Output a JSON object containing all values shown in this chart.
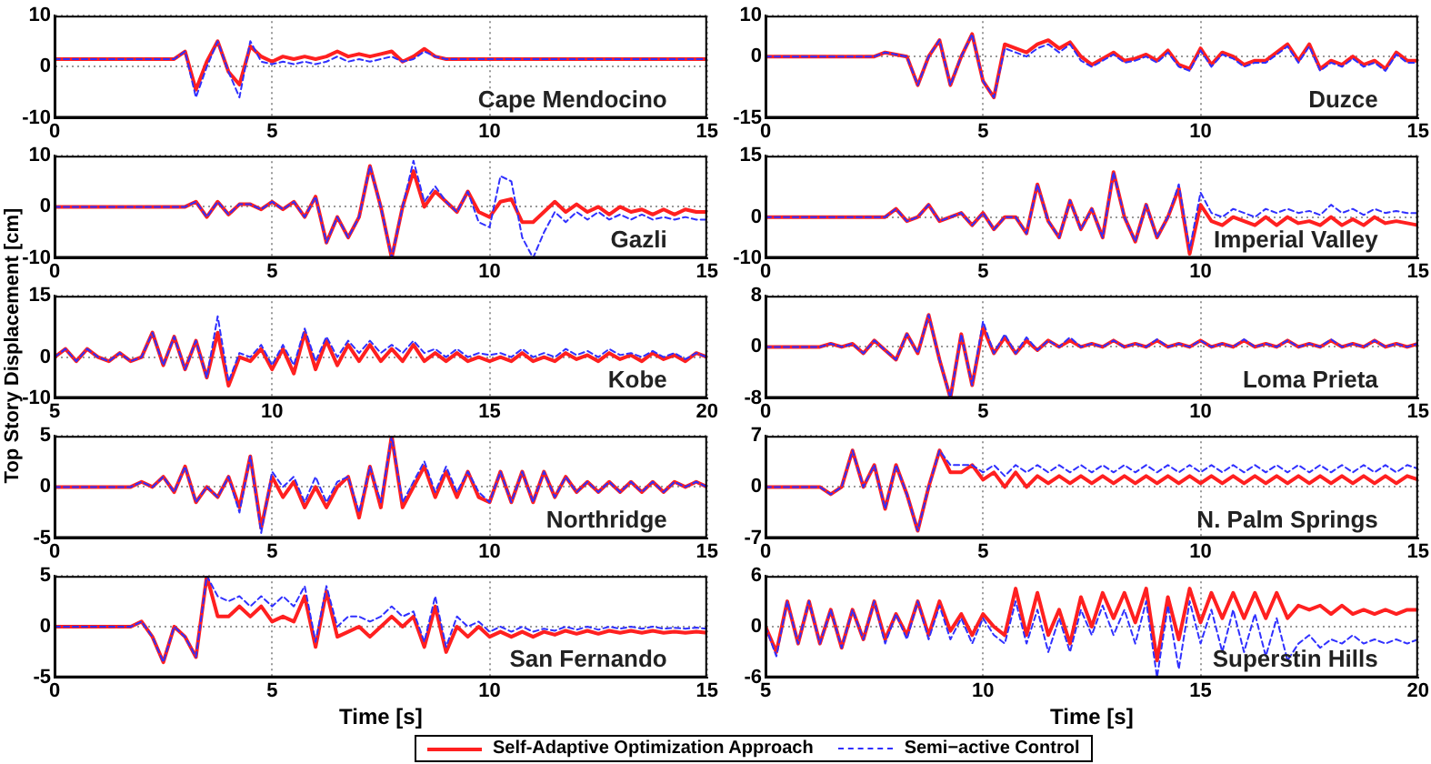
{
  "chart_data": [
    {
      "type": "line",
      "x": [
        0,
        0.25,
        0.5,
        0.75,
        1,
        1.25,
        1.5,
        1.75,
        2,
        2.25,
        2.5,
        2.75,
        3,
        3.25,
        3.5,
        3.75,
        4,
        4.25,
        4.5,
        4.75,
        5,
        5.25,
        5.5,
        5.75,
        6,
        6.25,
        6.5,
        6.75,
        7,
        7.25,
        7.5,
        7.75,
        8,
        8.25,
        8.5,
        8.75,
        9,
        9.25,
        9.5,
        9.75,
        10,
        10.25,
        10.5,
        10.75,
        11,
        11.25,
        11.5,
        11.75,
        12,
        12.25,
        12.5,
        12.75,
        13,
        13.25,
        13.5,
        13.75,
        14,
        14.25,
        14.5,
        14.75,
        15
      ],
      "xlim": [
        0,
        15
      ],
      "xticks": [
        0,
        5,
        10,
        15
      ],
      "ylim": [
        -10,
        10
      ],
      "yticks": [
        -10,
        0,
        10
      ],
      "grid": true,
      "legend": "bottom",
      "annotations": [
        "Cape Mendocino"
      ],
      "series": [
        {
          "name": "Self-Adaptive Optimization Approach",
          "color": "#ff2020",
          "line_style": "solid",
          "values": [
            1.5,
            1.5,
            1.5,
            1.5,
            1.5,
            1.5,
            1.5,
            1.5,
            1.5,
            1.5,
            1.5,
            1.5,
            3,
            -4.5,
            1,
            5,
            -1,
            -3.5,
            4,
            2,
            1,
            2,
            1.5,
            2,
            1.5,
            2,
            3,
            2,
            2.5,
            2,
            2.5,
            3,
            1,
            2,
            3.5,
            2,
            1.5,
            1.5,
            1.5,
            1.5,
            1.5,
            1.5,
            1.5,
            1.5,
            1.5,
            1.5,
            1.5,
            1.5,
            1.5,
            1.5,
            1.5,
            1.5,
            1.5,
            1.5,
            1.5,
            1.5,
            1.5,
            1.5,
            1.5,
            1.5,
            1.5
          ]
        },
        {
          "name": "Semi−active Control",
          "color": "#3030ff",
          "line_style": "dashed",
          "values": [
            1.5,
            1.5,
            1.5,
            1.5,
            1.5,
            1.5,
            1.5,
            1.5,
            1.5,
            1.5,
            1.5,
            1.5,
            3,
            -6,
            0,
            5,
            -1,
            -6,
            5,
            1,
            0.5,
            1,
            0.5,
            1,
            0.5,
            1,
            2,
            1,
            1.5,
            1,
            1.5,
            2,
            1,
            1.5,
            3,
            2,
            1.5,
            1.5,
            1.5,
            1.5,
            1.5,
            1.5,
            1.5,
            1.5,
            1.5,
            1.5,
            1.5,
            1.5,
            1.5,
            1.5,
            1.5,
            1.5,
            1.5,
            1.5,
            1.5,
            1.5,
            1.5,
            1.5,
            1.5,
            1.5,
            1.5
          ]
        }
      ]
    },
    {
      "type": "line",
      "x": [
        0,
        0.25,
        0.5,
        0.75,
        1,
        1.25,
        1.5,
        1.75,
        2,
        2.25,
        2.5,
        2.75,
        3,
        3.25,
        3.5,
        3.75,
        4,
        4.25,
        4.5,
        4.75,
        5,
        5.25,
        5.5,
        5.75,
        6,
        6.25,
        6.5,
        6.75,
        7,
        7.25,
        7.5,
        7.75,
        8,
        8.25,
        8.5,
        8.75,
        9,
        9.25,
        9.5,
        9.75,
        10,
        10.25,
        10.5,
        10.75,
        11,
        11.25,
        11.5,
        11.75,
        12,
        12.25,
        12.5,
        12.75,
        13,
        13.25,
        13.5,
        13.75,
        14,
        14.25,
        14.5,
        14.75,
        15
      ],
      "xlim": [
        0,
        15
      ],
      "xticks": [
        0,
        5,
        10,
        15
      ],
      "ylim": [
        -15,
        10
      ],
      "yticks": [
        -15,
        0,
        10
      ],
      "grid": true,
      "legend": "bottom",
      "annotations": [
        "Duzce"
      ],
      "series": [
        {
          "name": "Self-Adaptive Optimization Approach",
          "color": "#ff2020",
          "line_style": "solid",
          "values": [
            0,
            0,
            0,
            0,
            0,
            0,
            0,
            0,
            0,
            0,
            0,
            1,
            0.5,
            0,
            -7,
            0,
            4,
            -7,
            0,
            5.5,
            -6,
            -10,
            3,
            2,
            1,
            3,
            4,
            2,
            3.5,
            0,
            -2,
            -0.5,
            1,
            -1,
            -0.5,
            0.5,
            -1,
            1.5,
            -2,
            -3,
            2,
            -2,
            1,
            0,
            -2,
            -1,
            -1,
            1,
            3,
            -1,
            3,
            -3,
            -1,
            -2,
            0,
            -2,
            -1,
            -3,
            1,
            -1,
            -1
          ]
        },
        {
          "name": "Semi−active Control",
          "color": "#3030ff",
          "line_style": "dashed",
          "values": [
            0,
            0,
            0,
            0,
            0,
            0,
            0,
            0,
            0,
            0,
            0,
            1,
            0.5,
            0,
            -7,
            0,
            4,
            -7,
            0,
            5.5,
            -6,
            -10,
            2,
            1,
            0,
            2,
            3,
            1,
            3,
            -1,
            -2.5,
            -1,
            0.5,
            -1.5,
            -1,
            0,
            -1.5,
            1,
            -2.5,
            -3.5,
            1.5,
            -2.5,
            0.5,
            -0.5,
            -2.5,
            -1.5,
            -1.5,
            0.5,
            2.5,
            -1.5,
            2.5,
            -3.5,
            -1.5,
            -2.5,
            -0.5,
            -2.5,
            -1.5,
            -3.5,
            0.5,
            -1.5,
            -1.5
          ]
        }
      ]
    },
    {
      "type": "line",
      "x": [
        0,
        0.25,
        0.5,
        0.75,
        1,
        1.25,
        1.5,
        1.75,
        2,
        2.25,
        2.5,
        2.75,
        3,
        3.25,
        3.5,
        3.75,
        4,
        4.25,
        4.5,
        4.75,
        5,
        5.25,
        5.5,
        5.75,
        6,
        6.25,
        6.5,
        6.75,
        7,
        7.25,
        7.5,
        7.75,
        8,
        8.25,
        8.5,
        8.75,
        9,
        9.25,
        9.5,
        9.75,
        10,
        10.25,
        10.5,
        10.75,
        11,
        11.25,
        11.5,
        11.75,
        12,
        12.25,
        12.5,
        12.75,
        13,
        13.25,
        13.5,
        13.75,
        14,
        14.25,
        14.5,
        14.75,
        15
      ],
      "xlim": [
        0,
        15
      ],
      "xticks": [
        0,
        5,
        10,
        15
      ],
      "ylim": [
        -10,
        10
      ],
      "yticks": [
        -10,
        0,
        10
      ],
      "grid": true,
      "legend": "bottom",
      "annotations": [
        "Gazli"
      ],
      "series": [
        {
          "name": "Self-Adaptive Optimization Approach",
          "color": "#ff2020",
          "line_style": "solid",
          "values": [
            0,
            0,
            0,
            0,
            0,
            0,
            0,
            0,
            0,
            0,
            0,
            0,
            0,
            1,
            -2,
            1,
            -1.5,
            0.5,
            0.5,
            -0.5,
            1,
            -0.5,
            1,
            -2,
            2,
            -7,
            -2,
            -6,
            -2,
            8,
            0,
            -10,
            0,
            7,
            0,
            3,
            1,
            -1,
            3,
            -1,
            -2,
            1,
            1.5,
            -3,
            -3,
            -1,
            1,
            -1,
            0.5,
            -1,
            0,
            -1.5,
            0,
            -1,
            -0.5,
            -1.5,
            -0.5,
            -1.5,
            -0.5,
            -1,
            -1
          ]
        },
        {
          "name": "Semi−active Control",
          "color": "#3030ff",
          "line_style": "dashed",
          "values": [
            0,
            0,
            0,
            0,
            0,
            0,
            0,
            0,
            0,
            0,
            0,
            0,
            0,
            1,
            -2,
            1,
            -1.5,
            0.5,
            0.5,
            -0.5,
            1,
            -0.5,
            1,
            -2,
            2,
            -7,
            -2,
            -6,
            -2,
            8,
            0,
            -10,
            0,
            9,
            1,
            4,
            1,
            -1,
            3,
            -3,
            -4,
            6,
            5,
            -6,
            -10,
            -5,
            -1,
            -3,
            -1,
            -2.5,
            -1,
            -2.5,
            -1.5,
            -2.5,
            -1.5,
            -2.5,
            -2,
            -2.5,
            -2,
            -2.5,
            -2.5
          ]
        }
      ]
    },
    {
      "type": "line",
      "x": [
        0,
        0.25,
        0.5,
        0.75,
        1,
        1.25,
        1.5,
        1.75,
        2,
        2.25,
        2.5,
        2.75,
        3,
        3.25,
        3.5,
        3.75,
        4,
        4.25,
        4.5,
        4.75,
        5,
        5.25,
        5.5,
        5.75,
        6,
        6.25,
        6.5,
        6.75,
        7,
        7.25,
        7.5,
        7.75,
        8,
        8.25,
        8.5,
        8.75,
        9,
        9.25,
        9.5,
        9.75,
        10,
        10.25,
        10.5,
        10.75,
        11,
        11.25,
        11.5,
        11.75,
        12,
        12.25,
        12.5,
        12.75,
        13,
        13.25,
        13.5,
        13.75,
        14,
        14.25,
        14.5,
        14.75,
        15
      ],
      "xlim": [
        0,
        15
      ],
      "xticks": [
        0,
        5,
        10,
        15
      ],
      "ylim": [
        -10,
        15
      ],
      "yticks": [
        -10,
        0,
        15
      ],
      "grid": true,
      "legend": "bottom",
      "annotations": [
        "Imperial Valley"
      ],
      "series": [
        {
          "name": "Self-Adaptive Optimization Approach",
          "color": "#ff2020",
          "line_style": "solid",
          "values": [
            0,
            0,
            0,
            0,
            0,
            0,
            0,
            0,
            0,
            0,
            0,
            0,
            2,
            -1,
            0,
            3,
            -1,
            0,
            1,
            -2,
            1,
            -3,
            0,
            0,
            -4,
            8,
            -1,
            -5,
            4,
            -3,
            2,
            -5,
            11,
            0,
            -6,
            3,
            -5,
            0,
            7,
            -9,
            3,
            -1,
            -2,
            0,
            -1,
            -2,
            0,
            -2,
            0,
            -1.5,
            -1,
            -2,
            0,
            -2,
            -0.5,
            -2,
            0,
            -1.5,
            -1,
            -1.5,
            -2
          ]
        },
        {
          "name": "Semi−active Control",
          "color": "#3030ff",
          "line_style": "dashed",
          "values": [
            0,
            0,
            0,
            0,
            0,
            0,
            0,
            0,
            0,
            0,
            0,
            0,
            2,
            -1,
            0,
            3,
            -1,
            0,
            1,
            -2,
            1,
            -3,
            0,
            0,
            -4,
            8,
            -1,
            -5,
            4,
            -3,
            2,
            -5,
            11,
            0,
            -6,
            3,
            -5,
            0,
            8,
            -8,
            6,
            1,
            0,
            2,
            1,
            0,
            2,
            1,
            2,
            1,
            1.5,
            0.5,
            3,
            1,
            2,
            0.5,
            2,
            1,
            1.5,
            1,
            1
          ]
        }
      ]
    },
    {
      "type": "line",
      "x": [
        5,
        5.25,
        5.5,
        5.75,
        6,
        6.25,
        6.5,
        6.75,
        7,
        7.25,
        7.5,
        7.75,
        8,
        8.25,
        8.5,
        8.75,
        9,
        9.25,
        9.5,
        9.75,
        10,
        10.25,
        10.5,
        10.75,
        11,
        11.25,
        11.5,
        11.75,
        12,
        12.25,
        12.5,
        12.75,
        13,
        13.25,
        13.5,
        13.75,
        14,
        14.25,
        14.5,
        14.75,
        15,
        15.25,
        15.5,
        15.75,
        16,
        16.25,
        16.5,
        16.75,
        17,
        17.25,
        17.5,
        17.75,
        18,
        18.25,
        18.5,
        18.75,
        19,
        19.25,
        19.5,
        19.75,
        20
      ],
      "xlim": [
        5,
        20
      ],
      "xticks": [
        5,
        10,
        15,
        20
      ],
      "ylim": [
        -10,
        15
      ],
      "yticks": [
        -10,
        0,
        15
      ],
      "grid": true,
      "legend": "bottom",
      "annotations": [
        "Kobe"
      ],
      "ylabel": "Top Story Displacement [cm]",
      "series": [
        {
          "name": "Self-Adaptive Optimization Approach",
          "color": "#ff2020",
          "line_style": "solid",
          "values": [
            0,
            2,
            -1,
            2,
            0,
            -1,
            1,
            -1,
            0,
            6,
            -2,
            5,
            -3,
            4,
            -5,
            6,
            -7,
            0,
            -1,
            2,
            -3,
            2,
            -4,
            6,
            -3,
            4,
            -2,
            3,
            -1,
            3,
            -1,
            2,
            -1,
            3,
            -1,
            1,
            -1,
            1,
            -1,
            0,
            -1,
            0,
            -1,
            1,
            -1,
            0,
            -1,
            1,
            -0.5,
            0.5,
            -1,
            1,
            -0.5,
            0.5,
            -1,
            1,
            -0.5,
            0.5,
            -1,
            1,
            0
          ]
        },
        {
          "name": "Semi−active Control",
          "color": "#3030ff",
          "line_style": "dashed",
          "values": [
            0,
            2,
            -1,
            2,
            0,
            -1,
            1,
            -1,
            0,
            6,
            -2,
            5,
            -3,
            4,
            -5,
            10,
            -6,
            1,
            0,
            3,
            -2,
            3,
            -2,
            7,
            -1,
            5,
            0,
            4,
            1,
            4,
            1,
            3,
            1,
            4,
            1,
            2,
            0,
            2,
            0,
            1,
            0.5,
            1,
            0,
            2,
            0,
            1,
            0,
            2,
            0.5,
            1.5,
            0,
            2,
            0.5,
            1,
            0,
            1.5,
            0,
            1,
            -0.5,
            1,
            0
          ]
        }
      ]
    },
    {
      "type": "line",
      "x": [
        0,
        0.25,
        0.5,
        0.75,
        1,
        1.25,
        1.5,
        1.75,
        2,
        2.25,
        2.5,
        2.75,
        3,
        3.25,
        3.5,
        3.75,
        4,
        4.25,
        4.5,
        4.75,
        5,
        5.25,
        5.5,
        5.75,
        6,
        6.25,
        6.5,
        6.75,
        7,
        7.25,
        7.5,
        7.75,
        8,
        8.25,
        8.5,
        8.75,
        9,
        9.25,
        9.5,
        9.75,
        10,
        10.25,
        10.5,
        10.75,
        11,
        11.25,
        11.5,
        11.75,
        12,
        12.25,
        12.5,
        12.75,
        13,
        13.25,
        13.5,
        13.75,
        14,
        14.25,
        14.5,
        14.75,
        15
      ],
      "xlim": [
        0,
        15
      ],
      "xticks": [
        0,
        5,
        10,
        15
      ],
      "ylim": [
        -8,
        8
      ],
      "yticks": [
        -8,
        0,
        8
      ],
      "grid": true,
      "legend": "bottom",
      "annotations": [
        "Loma Prieta"
      ],
      "series": [
        {
          "name": "Self-Adaptive Optimization Approach",
          "color": "#ff2020",
          "line_style": "solid",
          "values": [
            0,
            0,
            0,
            0,
            0,
            0,
            0.5,
            0,
            0.5,
            -1,
            1,
            -0.5,
            -2,
            2,
            -1,
            5,
            -2,
            -8,
            2,
            -6,
            3,
            -1,
            1.5,
            -1,
            1,
            -0.5,
            1,
            0,
            1,
            0,
            0.5,
            0,
            1,
            0,
            0.5,
            0,
            1,
            0,
            0.5,
            0,
            1,
            0,
            0.5,
            0,
            1,
            0,
            0.5,
            0,
            1,
            0,
            0.5,
            0,
            1,
            0,
            0.5,
            0,
            1,
            0,
            0.5,
            0,
            0.5
          ]
        },
        {
          "name": "Semi−active Control",
          "color": "#3030ff",
          "line_style": "dashed",
          "values": [
            0,
            0,
            0,
            0,
            0,
            0,
            0.5,
            0,
            0.5,
            -1,
            1,
            -0.5,
            -2,
            2,
            -1,
            5,
            -2,
            -8,
            2,
            -6,
            4,
            -1,
            2,
            -1,
            1.5,
            -0.5,
            1,
            0,
            1.5,
            0,
            0.5,
            0,
            1,
            0,
            0.5,
            0,
            1.2,
            0,
            0.5,
            0,
            1,
            0,
            0.5,
            0,
            1.2,
            0,
            0.5,
            0,
            1,
            0,
            0.5,
            0,
            1.2,
            0,
            0.5,
            0,
            1,
            0,
            0.5,
            0,
            0.5
          ]
        }
      ]
    },
    {
      "type": "line",
      "x": [
        0,
        0.25,
        0.5,
        0.75,
        1,
        1.25,
        1.5,
        1.75,
        2,
        2.25,
        2.5,
        2.75,
        3,
        3.25,
        3.5,
        3.75,
        4,
        4.25,
        4.5,
        4.75,
        5,
        5.25,
        5.5,
        5.75,
        6,
        6.25,
        6.5,
        6.75,
        7,
        7.25,
        7.5,
        7.75,
        8,
        8.25,
        8.5,
        8.75,
        9,
        9.25,
        9.5,
        9.75,
        10,
        10.25,
        10.5,
        10.75,
        11,
        11.25,
        11.5,
        11.75,
        12,
        12.25,
        12.5,
        12.75,
        13,
        13.25,
        13.5,
        13.75,
        14,
        14.25,
        14.5,
        14.75,
        15
      ],
      "xlim": [
        0,
        15
      ],
      "xticks": [
        0,
        5,
        10,
        15
      ],
      "ylim": [
        -5,
        5
      ],
      "yticks": [
        -5,
        0,
        5
      ],
      "grid": true,
      "legend": "bottom",
      "annotations": [
        "Northridge"
      ],
      "series": [
        {
          "name": "Self-Adaptive Optimization Approach",
          "color": "#ff2020",
          "line_style": "solid",
          "values": [
            0,
            0,
            0,
            0,
            0,
            0,
            0,
            0,
            0.5,
            0,
            1,
            -0.5,
            2,
            -1.5,
            0,
            -1,
            1,
            -2,
            3,
            -4,
            1,
            -1,
            0.5,
            -2,
            0,
            -2,
            0,
            1,
            -3,
            2,
            -2,
            5,
            -2,
            0,
            2,
            -1,
            1.5,
            -1,
            1.5,
            -1,
            -1.5,
            1.5,
            -1.5,
            1.5,
            -1.5,
            1.5,
            -1,
            1,
            -0.5,
            0.5,
            -0.5,
            0.5,
            -0.5,
            0.5,
            -0.5,
            0.5,
            -0.5,
            0.5,
            0,
            0.5,
            0
          ]
        },
        {
          "name": "Semi−active Control",
          "color": "#3030ff",
          "line_style": "dashed",
          "values": [
            0,
            0,
            0,
            0,
            0,
            0,
            0,
            0,
            0.5,
            0,
            1,
            -0.5,
            2,
            -1.5,
            0,
            -1,
            1,
            -2.5,
            3,
            -4.5,
            1.5,
            0,
            1,
            -1.5,
            1,
            -1.5,
            0.5,
            1,
            -2.5,
            2,
            -1.5,
            5,
            -1.5,
            0.5,
            2.5,
            -0.5,
            2,
            -0.5,
            1.5,
            -0.5,
            -1.5,
            1.5,
            -1.5,
            1.5,
            -1.5,
            1.5,
            -1,
            1,
            -0.5,
            0.5,
            -0.5,
            0.5,
            -0.5,
            0.5,
            -0.5,
            0.5,
            -0.5,
            0.5,
            0,
            0.5,
            0
          ]
        }
      ]
    },
    {
      "type": "line",
      "x": [
        0,
        0.25,
        0.5,
        0.75,
        1,
        1.25,
        1.5,
        1.75,
        2,
        2.25,
        2.5,
        2.75,
        3,
        3.25,
        3.5,
        3.75,
        4,
        4.25,
        4.5,
        4.75,
        5,
        5.25,
        5.5,
        5.75,
        6,
        6.25,
        6.5,
        6.75,
        7,
        7.25,
        7.5,
        7.75,
        8,
        8.25,
        8.5,
        8.75,
        9,
        9.25,
        9.5,
        9.75,
        10,
        10.25,
        10.5,
        10.75,
        11,
        11.25,
        11.5,
        11.75,
        12,
        12.25,
        12.5,
        12.75,
        13,
        13.25,
        13.5,
        13.75,
        14,
        14.25,
        14.5,
        14.75,
        15
      ],
      "xlim": [
        0,
        15
      ],
      "xticks": [
        0,
        5,
        10,
        15
      ],
      "ylim": [
        -7,
        7
      ],
      "yticks": [
        -7,
        0,
        7
      ],
      "grid": true,
      "legend": "bottom",
      "annotations": [
        "N. Palm Springs"
      ],
      "series": [
        {
          "name": "Self-Adaptive Optimization Approach",
          "color": "#ff2020",
          "line_style": "solid",
          "values": [
            0,
            0,
            0,
            0,
            0,
            0,
            -1,
            0,
            5,
            0,
            3,
            -3,
            3,
            -1,
            -6,
            0,
            5,
            2,
            2,
            3,
            1,
            2,
            0,
            2,
            0,
            1.5,
            0.5,
            1.5,
            0.5,
            1.5,
            0.5,
            1.5,
            0.5,
            1.5,
            0.5,
            1.5,
            0.5,
            1.5,
            0.5,
            1.5,
            0.5,
            1.5,
            0.5,
            1.5,
            0.5,
            1.5,
            0.5,
            1.5,
            0.5,
            1.5,
            0.5,
            1.5,
            0.5,
            1.5,
            0.5,
            1.5,
            0.5,
            1.5,
            0.5,
            1.5,
            1
          ]
        },
        {
          "name": "Semi−active Control",
          "color": "#3030ff",
          "line_style": "dashed",
          "values": [
            0,
            0,
            0,
            0,
            0,
            0,
            -1,
            0,
            5,
            0,
            3,
            -3,
            3,
            -1,
            -6,
            0,
            5,
            3,
            3,
            3,
            2,
            3,
            1.5,
            3,
            2,
            3,
            2,
            3,
            2,
            3,
            2,
            3,
            2,
            3,
            2,
            3,
            2,
            3,
            2,
            3,
            2,
            3,
            2,
            3,
            2,
            3,
            2,
            3,
            2,
            3,
            2,
            3,
            2,
            3,
            2,
            3,
            2,
            3,
            2,
            3,
            2.5
          ]
        }
      ]
    },
    {
      "type": "line",
      "x": [
        0,
        0.25,
        0.5,
        0.75,
        1,
        1.25,
        1.5,
        1.75,
        2,
        2.25,
        2.5,
        2.75,
        3,
        3.25,
        3.5,
        3.75,
        4,
        4.25,
        4.5,
        4.75,
        5,
        5.25,
        5.5,
        5.75,
        6,
        6.25,
        6.5,
        6.75,
        7,
        7.25,
        7.5,
        7.75,
        8,
        8.25,
        8.5,
        8.75,
        9,
        9.25,
        9.5,
        9.75,
        10,
        10.25,
        10.5,
        10.75,
        11,
        11.25,
        11.5,
        11.75,
        12,
        12.25,
        12.5,
        12.75,
        13,
        13.25,
        13.5,
        13.75,
        14,
        14.25,
        14.5,
        14.75,
        15
      ],
      "xlim": [
        0,
        15
      ],
      "xticks": [
        0,
        5,
        10,
        15
      ],
      "ylim": [
        -5,
        5
      ],
      "yticks": [
        -5,
        0,
        5
      ],
      "grid": true,
      "legend": "bottom",
      "annotations": [
        "San Fernando"
      ],
      "xlabel": "Time [s]",
      "series": [
        {
          "name": "Self-Adaptive Optimization Approach",
          "color": "#ff2020",
          "line_style": "solid",
          "values": [
            0,
            0,
            0,
            0,
            0,
            0,
            0,
            0,
            0.5,
            -1,
            -3.5,
            0,
            -1,
            -3,
            5,
            1,
            1,
            2,
            1,
            2,
            0.5,
            1,
            0.5,
            3,
            -2,
            3.5,
            -1,
            -0.5,
            0,
            -1,
            0,
            1,
            0,
            1,
            -2,
            2,
            -2.5,
            0,
            -1,
            0,
            -1,
            -0.5,
            -1,
            -0.5,
            -1,
            -0.5,
            -0.8,
            -0.4,
            -0.7,
            -0.4,
            -0.7,
            -0.4,
            -0.6,
            -0.4,
            -0.6,
            -0.4,
            -0.6,
            -0.5,
            -0.6,
            -0.5,
            -0.6
          ]
        },
        {
          "name": "Semi−active Control",
          "color": "#3030ff",
          "line_style": "dashed",
          "values": [
            0,
            0,
            0,
            0,
            0,
            0,
            0,
            0,
            0.5,
            -1,
            -3.5,
            0,
            -1,
            -3,
            5,
            3,
            2.5,
            3,
            2,
            3,
            2,
            3,
            2,
            4,
            -1.5,
            4,
            0,
            1,
            1,
            0.5,
            1,
            2,
            1,
            1.5,
            -1.5,
            3,
            -2,
            1,
            0,
            0.5,
            -0.5,
            0,
            -0.5,
            0,
            -0.5,
            -0.2,
            -0.4,
            0,
            -0.3,
            0,
            -0.3,
            0,
            -0.2,
            0,
            -0.2,
            0,
            -0.2,
            -0.1,
            -0.2,
            -0.1,
            -0.2
          ]
        }
      ]
    },
    {
      "type": "line",
      "x": [
        5,
        5.25,
        5.5,
        5.75,
        6,
        6.25,
        6.5,
        6.75,
        7,
        7.25,
        7.5,
        7.75,
        8,
        8.25,
        8.5,
        8.75,
        9,
        9.25,
        9.5,
        9.75,
        10,
        10.25,
        10.5,
        10.75,
        11,
        11.25,
        11.5,
        11.75,
        12,
        12.25,
        12.5,
        12.75,
        13,
        13.25,
        13.5,
        13.75,
        14,
        14.25,
        14.5,
        14.75,
        15,
        15.25,
        15.5,
        15.75,
        16,
        16.25,
        16.5,
        16.75,
        17,
        17.25,
        17.5,
        17.75,
        18,
        18.25,
        18.5,
        18.75,
        19,
        19.25,
        19.5,
        19.75,
        20
      ],
      "xlim": [
        5,
        20
      ],
      "xticks": [
        5,
        10,
        15,
        20
      ],
      "ylim": [
        -6,
        6
      ],
      "yticks": [
        -6,
        0,
        6
      ],
      "grid": true,
      "legend": "bottom",
      "annotations": [
        "Superstin Hills"
      ],
      "xlabel": "Time [s]",
      "series": [
        {
          "name": "Self-Adaptive Optimization Approach",
          "color": "#ff2020",
          "line_style": "solid",
          "values": [
            0,
            -3,
            3,
            -2,
            3,
            -2,
            2,
            -2.5,
            2,
            -1.5,
            3,
            -1.5,
            1.5,
            -1,
            3,
            -1,
            3,
            -0.5,
            1.5,
            -1,
            1.5,
            0,
            -1,
            4.5,
            -1,
            4,
            -1,
            2,
            -2,
            3.5,
            0,
            4,
            1,
            4,
            0.5,
            4.5,
            -4,
            3.5,
            -1.5,
            4.5,
            0.5,
            4,
            1,
            4,
            1,
            4,
            1,
            4,
            1,
            2.5,
            2,
            2.5,
            1.5,
            2.5,
            1.5,
            2,
            1.5,
            2,
            1.5,
            2,
            2
          ]
        },
        {
          "name": "Semi−active Control",
          "color": "#3030ff",
          "line_style": "dashed",
          "values": [
            0,
            -3.5,
            3,
            -2,
            3,
            -2,
            2,
            -2.5,
            2,
            -1.5,
            3,
            -2,
            1.5,
            -1.5,
            3,
            -1.5,
            2.5,
            -1.5,
            1,
            -2,
            1,
            -1,
            -2,
            3,
            -2,
            2,
            -3,
            1,
            -3,
            2,
            -1,
            2.5,
            -1,
            2,
            -2,
            3,
            -6,
            2.5,
            -5,
            3,
            -2,
            2,
            -3,
            2,
            -3,
            1.5,
            -3.5,
            1,
            -4,
            -2,
            -1,
            -2.5,
            -1.5,
            -2,
            -1,
            -2,
            -1.5,
            -2,
            -1.5,
            -2,
            -1.5
          ]
        }
      ]
    }
  ]
}
